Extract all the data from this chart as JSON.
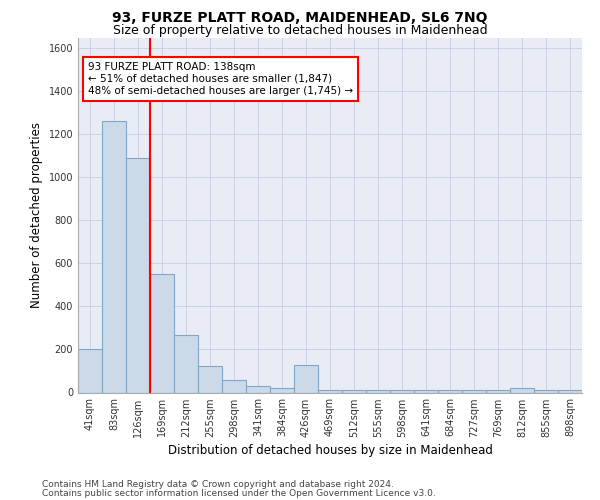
{
  "title": "93, FURZE PLATT ROAD, MAIDENHEAD, SL6 7NQ",
  "subtitle": "Size of property relative to detached houses in Maidenhead",
  "xlabel": "Distribution of detached houses by size in Maidenhead",
  "ylabel": "Number of detached properties",
  "footer_line1": "Contains HM Land Registry data © Crown copyright and database right 2024.",
  "footer_line2": "Contains public sector information licensed under the Open Government Licence v3.0.",
  "categories": [
    "41sqm",
    "83sqm",
    "126sqm",
    "169sqm",
    "212sqm",
    "255sqm",
    "298sqm",
    "341sqm",
    "384sqm",
    "426sqm",
    "469sqm",
    "512sqm",
    "555sqm",
    "598sqm",
    "641sqm",
    "684sqm",
    "727sqm",
    "769sqm",
    "812sqm",
    "855sqm",
    "898sqm"
  ],
  "values": [
    200,
    1260,
    1090,
    550,
    265,
    125,
    60,
    30,
    20,
    130,
    10,
    10,
    10,
    10,
    10,
    10,
    10,
    10,
    20,
    10,
    10
  ],
  "bar_color": "#ccd9e8",
  "bar_edge_color": "#7fa8c8",
  "red_line_x": 2.5,
  "annotation_text": "93 FURZE PLATT ROAD: 138sqm\n← 51% of detached houses are smaller (1,847)\n48% of semi-detached houses are larger (1,745) →",
  "annotation_box_color": "white",
  "annotation_box_edge_color": "red",
  "red_line_color": "red",
  "ylim": [
    0,
    1650
  ],
  "yticks": [
    0,
    200,
    400,
    600,
    800,
    1000,
    1200,
    1400,
    1600
  ],
  "grid_color": "#c8cce0",
  "bg_color": "#eaecf5",
  "title_fontsize": 10,
  "subtitle_fontsize": 9,
  "xlabel_fontsize": 8.5,
  "ylabel_fontsize": 8.5,
  "tick_fontsize": 7,
  "annotation_fontsize": 7.5
}
